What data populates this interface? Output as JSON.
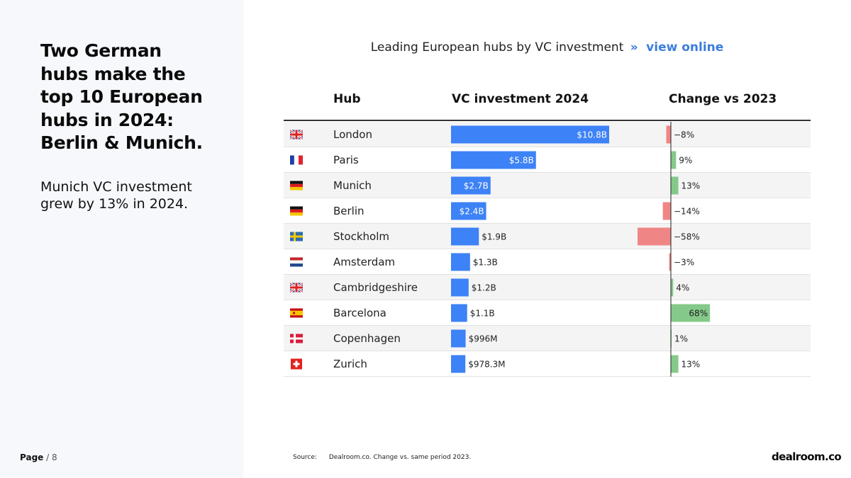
{
  "headline": "Two German hubs make the top 10 European hubs in 2024: Berlin & Munich.",
  "subtext": "Munich VC investment grew by 13% in 2024.",
  "page": {
    "label": "Page",
    "number": "/ 8"
  },
  "chart_title": {
    "text": "Leading European hubs by VC investment",
    "separator": "»",
    "link": "view online"
  },
  "columns": {
    "hub": "Hub",
    "investment": "VC investment 2024",
    "change": "Change vs 2023"
  },
  "source": {
    "label": "Source:",
    "text": "Dealroom.co. Change vs. same period 2023."
  },
  "logo": "dealroom.co",
  "colors": {
    "bar": "#3d82f6",
    "negative": "#f08585",
    "positive": "#84c98a",
    "link": "#3b7ddd",
    "stripe": "#f4f4f4"
  },
  "chart_data": {
    "type": "table",
    "rows": [
      {
        "hub": "London",
        "flag": "uk-flag-icon",
        "value": 10.8,
        "value_label": "$10.8B",
        "change": -8,
        "change_label": "−8%"
      },
      {
        "hub": "Paris",
        "flag": "france-flag-icon",
        "value": 5.8,
        "value_label": "$5.8B",
        "change": 9,
        "change_label": "9%"
      },
      {
        "hub": "Munich",
        "flag": "germany-flag-icon",
        "value": 2.7,
        "value_label": "$2.7B",
        "change": 13,
        "change_label": "13%"
      },
      {
        "hub": "Berlin",
        "flag": "germany-flag-icon",
        "value": 2.4,
        "value_label": "$2.4B",
        "change": -14,
        "change_label": "−14%"
      },
      {
        "hub": "Stockholm",
        "flag": "sweden-flag-icon",
        "value": 1.9,
        "value_label": "$1.9B",
        "change": -58,
        "change_label": "−58%"
      },
      {
        "hub": "Amsterdam",
        "flag": "netherlands-flag-icon",
        "value": 1.3,
        "value_label": "$1.3B",
        "change": -3,
        "change_label": "−3%"
      },
      {
        "hub": "Cambridgeshire",
        "flag": "uk-flag-icon",
        "value": 1.2,
        "value_label": "$1.2B",
        "change": 4,
        "change_label": "4%"
      },
      {
        "hub": "Barcelona",
        "flag": "spain-flag-icon",
        "value": 1.1,
        "value_label": "$1.1B",
        "change": 68,
        "change_label": "68%"
      },
      {
        "hub": "Copenhagen",
        "flag": "denmark-flag-icon",
        "value": 0.996,
        "value_label": "$996M",
        "change": 1,
        "change_label": "1%"
      },
      {
        "hub": "Zurich",
        "flag": "switzerland-flag-icon",
        "value": 0.9783,
        "value_label": "$978.3M",
        "change": 13,
        "change_label": "13%"
      }
    ],
    "value_unit": "USD billions",
    "change_unit": "%",
    "xlim_value": [
      0,
      10.8
    ],
    "xlim_change": [
      -58,
      68
    ]
  }
}
